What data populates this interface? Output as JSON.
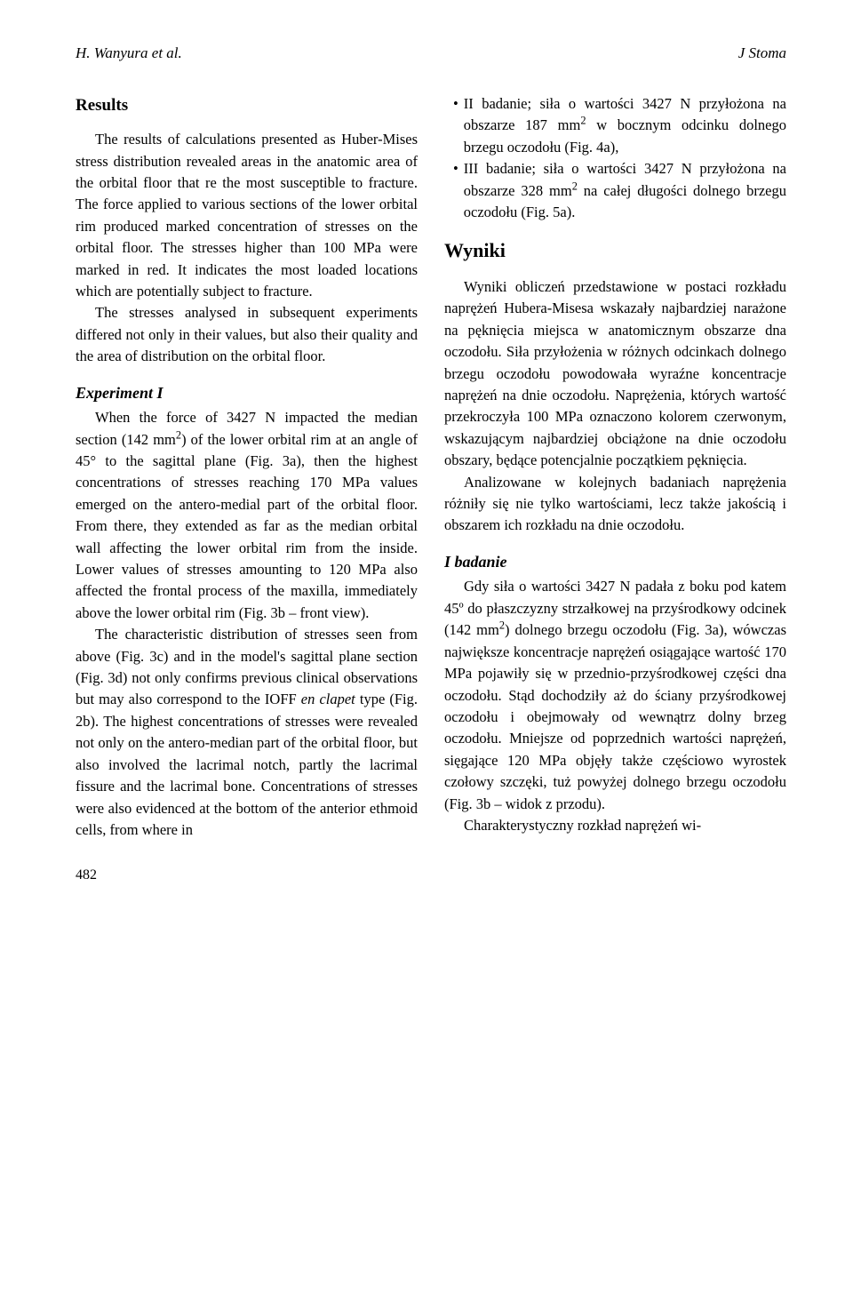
{
  "header": {
    "authors": "H. Wanyura et al.",
    "journal": "J Stoma"
  },
  "left_column": {
    "results_heading": "Results",
    "results_para1": "The results of calculations presented as Huber-Mises stress distribution revealed areas in the anatomic area of the orbital floor that re the most susceptible to fracture. The force applied to various sections of the lower orbital rim produced marked concentration of stresses on the orbital floor. The stresses higher than 100 MPa were marked in red. It indicates the most loaded locations which are potentially subject to fracture.",
    "results_para2": "The stresses analysed in subsequent experiments differed not only in their values, but also their quality and the area of distribution on the orbital floor.",
    "exp1_heading": "Experiment I",
    "exp1_para1_a": "When the force of 3427 N impacted the median section (142 mm",
    "exp1_para1_b": ") of the lower orbital rim at an angle of 45° to the sagittal plane (Fig. 3a), then the highest concentrations of stresses reaching 170 MPa values emerged on the antero-medial part of the orbital floor. From there, they extended as far as the median orbital wall affecting the lower orbital rim from the inside. Lower values of stresses amounting to 120 MPa also affected the frontal process of the maxilla, immediately above the lower orbital rim (Fig. 3b – front view).",
    "exp1_para2_a": "The characteristic distribution of stresses seen from above (Fig. 3c) and in the model's sagittal plane section (Fig. 3d) not only confirms previous clinical observations but may also correspond to the IOFF ",
    "exp1_para2_italic": "en clapet",
    "exp1_para2_b": " type (Fig. 2b). The highest concentrations of stresses were revealed not only on the antero-median part of the orbital floor, but also involved the lacrimal notch, partly the lacrimal fissure and the lacrimal bone. Concentrations of stresses were also evidenced at the bottom of the anterior ethmoid cells, from where in"
  },
  "right_column": {
    "bullet1_a": "II badanie; siła o wartości 3427 N przyłożona na obszarze 187 mm",
    "bullet1_b": " w bocznym odcinku dolnego brzegu oczodołu (Fig. 4a),",
    "bullet2_a": "III badanie; siła o wartości 3427 N przyłożona na obszarze 328 mm",
    "bullet2_b": " na całej długości dolnego brzegu oczodołu (Fig. 5a).",
    "wyniki_heading": "Wyniki",
    "wyniki_para1": "Wyniki obliczeń przedstawione w postaci rozkładu naprężeń Hubera-Misesa wskazały najbardziej narażone na pęknięcia miejsca w anatomicznym obszarze dna oczodołu. Siła przyłożenia w różnych odcinkach dolnego brzegu oczodołu powodowała wyraźne koncentracje naprężeń na dnie oczodołu. Naprężenia, których wartość przekroczyła 100 MPa oznaczono kolorem czerwonym, wskazującym najbardziej obciążone na dnie oczodołu obszary, będące potencjalnie początkiem pęknięcia.",
    "wyniki_para2": "Analizowane w kolejnych badaniach naprężenia różniły się nie tylko wartościami, lecz także jakością i obszarem ich rozkładu na dnie oczodołu.",
    "badanie_heading": "I badanie",
    "badanie_para1_a": "Gdy siła o wartości 3427 N padała z boku pod katem 45º do płaszczyzny strzałkowej na przyśrodkowy odcinek (142 mm",
    "badanie_para1_b": ") dolnego brzegu oczodołu (Fig. 3a), wówczas największe koncentracje naprężeń osiągające wartość 170 MPa pojawiły się w przednio-przyśrodkowej części dna oczodołu. Stąd dochodziły aż do ściany przyśrodkowej oczodołu i obejmowały od wewnątrz dolny brzeg oczodołu. Mniejsze od poprzednich wartości naprężeń, sięgające 120 MPa objęły także częściowo wyrostek czołowy szczęki, tuż powyżej dolnego brzegu oczodołu (Fig. 3b – widok z przodu).",
    "badanie_para2": "Charakterystyczny rozkład naprężeń wi-"
  },
  "page_number": "482"
}
